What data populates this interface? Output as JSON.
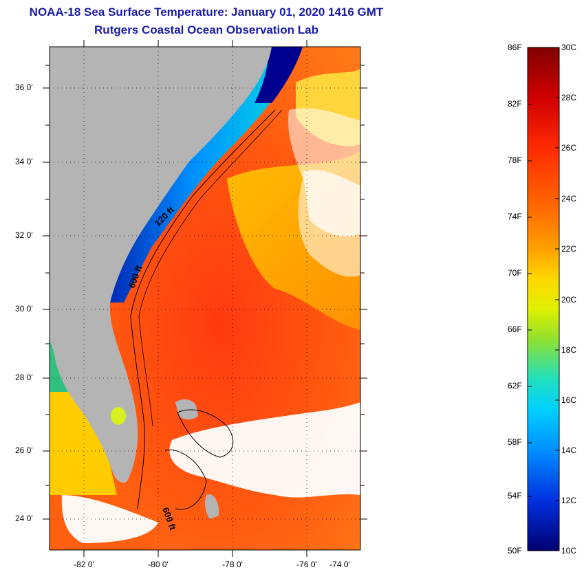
{
  "title": {
    "line1": "NOAA-18 Sea Surface Temperature:  January 01, 2020 1416 GMT",
    "line2": "Rutgers Coastal Ocean Observation Lab"
  },
  "map": {
    "lat_labels": [
      "36 0'",
      "34 0'",
      "32 0'",
      "30 0'",
      "28 0'",
      "26 0'",
      "24 0'"
    ],
    "lon_labels": [
      "-82 0'",
      "-80 0'",
      "-78 0'",
      "-76 0'",
      "-74 0'"
    ],
    "contour_labels": [
      "120 ft",
      "600 ft",
      "600 ft"
    ],
    "colors": {
      "land": "#b4b4b4",
      "cloud": "#ffffff",
      "warm_ocean": "#ff4a10",
      "gulf_stream": "#f03010"
    }
  },
  "colorbar": {
    "fahrenheit_labels": [
      "86F",
      "82F",
      "78F",
      "74F",
      "70F",
      "66F",
      "62F",
      "58F",
      "54F",
      "50F"
    ],
    "celsius_labels": [
      "30C",
      "28C",
      "26C",
      "24C",
      "22C",
      "20C",
      "18C",
      "16C",
      "14C",
      "12C",
      "10C"
    ],
    "colors": [
      "#8b0000",
      "#e00000",
      "#ff4000",
      "#ff8000",
      "#ffcc00",
      "#e6f000",
      "#80e040",
      "#00e0e0",
      "#0090ff",
      "#0030d0",
      "#000080"
    ]
  }
}
